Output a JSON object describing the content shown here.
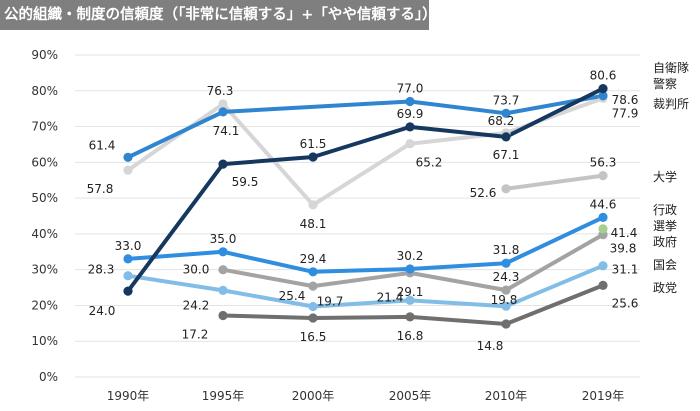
{
  "chart_data": {
    "type": "line",
    "title": "公的組織・制度の信頼度（「非常に信頼する」+「やや信頼する」）",
    "xlabel": "",
    "ylabel": "",
    "ylim": [
      0,
      90
    ],
    "y_ticks": [
      "0%",
      "10%",
      "20%",
      "30%",
      "40%",
      "50%",
      "60%",
      "70%",
      "80%",
      "90%"
    ],
    "categories": [
      "1990年",
      "1995年",
      "2000年",
      "2005年",
      "2010年",
      "2019年"
    ],
    "grid": true,
    "series": [
      {
        "name": "自衛隊",
        "color": "#16385f",
        "values": [
          24.0,
          59.5,
          61.5,
          69.9,
          67.1,
          80.6
        ],
        "labels": [
          "24.0",
          "59.5",
          "61.5",
          "69.9",
          "67.1",
          "80.6"
        ]
      },
      {
        "name": "警察",
        "color": "#2f85cf",
        "values": [
          61.4,
          74.1,
          null,
          77.0,
          73.7,
          78.6
        ],
        "labels": [
          "61.4",
          "74.1",
          "",
          "77.0",
          "73.7",
          "78.6"
        ]
      },
      {
        "name": "裁判所",
        "color": "#d6d6d6",
        "values": [
          57.8,
          76.3,
          48.1,
          65.2,
          68.2,
          77.9
        ],
        "labels": [
          "57.8",
          "76.3",
          "48.1",
          "65.2",
          "68.2",
          "77.9"
        ]
      },
      {
        "name": "大学",
        "color": "#c4c4c4",
        "values": [
          null,
          null,
          null,
          null,
          52.6,
          56.3
        ],
        "labels": [
          "",
          "",
          "",
          "",
          "52.6",
          "56.3"
        ]
      },
      {
        "name": "行政",
        "color": "#2f8ee0",
        "values": [
          33.0,
          35.0,
          29.4,
          30.2,
          31.8,
          44.6
        ],
        "labels": [
          "33.0",
          "35.0",
          "29.4",
          "30.2",
          "31.8",
          "44.6"
        ]
      },
      {
        "name": "選挙",
        "color": "#a6cf8e",
        "values": [
          null,
          null,
          null,
          null,
          null,
          41.4
        ],
        "labels": [
          "",
          "",
          "",
          "",
          "",
          "41.4"
        ]
      },
      {
        "name": "政府",
        "color": "#a3a3a3",
        "values": [
          null,
          30.0,
          25.4,
          29.1,
          24.3,
          39.8
        ],
        "labels": [
          "",
          "30.0",
          "25.4",
          "29.1",
          "24.3",
          "39.8"
        ]
      },
      {
        "name": "国会",
        "color": "#82bde8",
        "values": [
          28.3,
          24.2,
          19.7,
          21.4,
          19.8,
          31.1
        ],
        "labels": [
          "28.3",
          "24.2",
          "19.7",
          "21.4",
          "19.8",
          "31.1"
        ]
      },
      {
        "name": "政党",
        "color": "#6f6f6f",
        "values": [
          null,
          17.2,
          16.5,
          16.8,
          14.8,
          25.6
        ],
        "labels": [
          "",
          "17.2",
          "16.5",
          "16.8",
          "14.8",
          "25.6"
        ]
      }
    ]
  }
}
